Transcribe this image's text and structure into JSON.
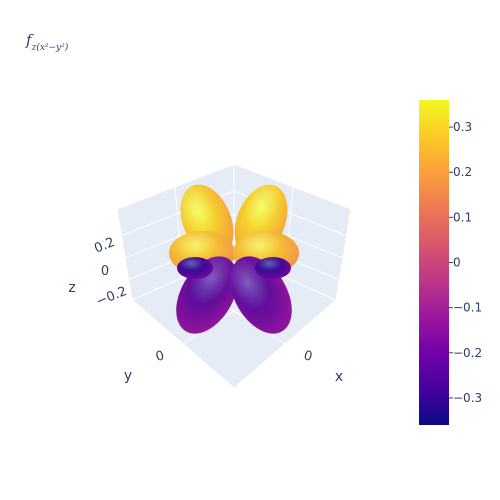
{
  "chart_data": {
    "type": "3d-surface",
    "title_base": "f",
    "title_subscript": "z(x²−y²)",
    "scene": {
      "xaxis": {
        "title": "x",
        "ticks": [
          "0"
        ]
      },
      "yaxis": {
        "title": "y",
        "ticks": [
          "0"
        ]
      },
      "zaxis": {
        "title": "z",
        "ticks": [
          "0.2",
          "0",
          "−0.2"
        ]
      },
      "background": "#e5ecf6",
      "grid": true
    },
    "colorscale": [
      "#0d0887",
      "#46039f",
      "#7201a8",
      "#9c179e",
      "#bd3786",
      "#d8576b",
      "#ed7953",
      "#fb9f3a",
      "#fdca26",
      "#f0f921"
    ],
    "colorbar": {
      "range": [
        -0.36,
        0.36
      ],
      "tickvals": [
        0.3,
        0.2,
        0.1,
        0,
        -0.1,
        -0.2,
        -0.3
      ],
      "ticktext": [
        "0.3",
        "0.2",
        "0.1",
        "0",
        "−0.1",
        "−0.2",
        "−0.3"
      ],
      "placement": "right"
    },
    "lobes": [
      {
        "name": "upper-left-lobe",
        "value": 0.36
      },
      {
        "name": "upper-right-lobe",
        "value": 0.36
      },
      {
        "name": "middle-left-lobe",
        "value": 0.33
      },
      {
        "name": "middle-right-lobe",
        "value": 0.33
      },
      {
        "name": "lower-left-lobe",
        "value": -0.3
      },
      {
        "name": "lower-right-lobe",
        "value": -0.3
      },
      {
        "name": "back-left-lobe",
        "value": -0.36
      },
      {
        "name": "back-right-lobe",
        "value": -0.36
      }
    ]
  }
}
